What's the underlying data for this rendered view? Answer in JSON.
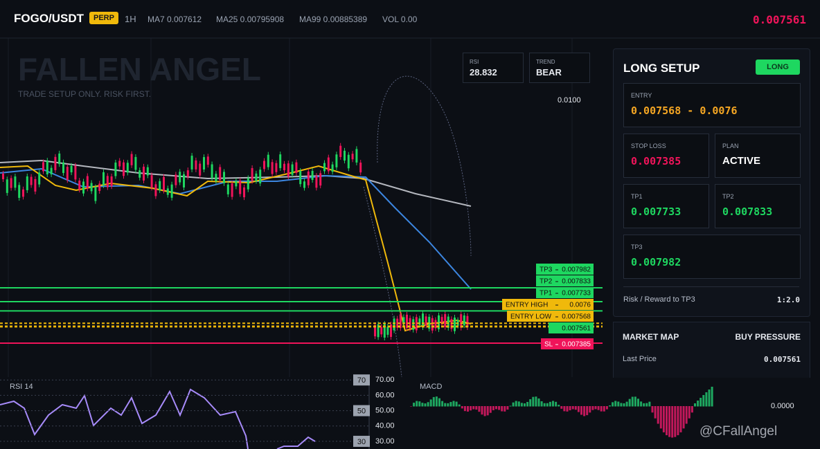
{
  "header": {
    "symbol": "FOGO/USDT",
    "badge": "PERP",
    "interval": "1H",
    "ma7": "MA7 0.007612",
    "ma25": "MA25 0.00795908",
    "ma99": "MA99 0.00885389",
    "vol": "VOL 0.00",
    "price": "0.007561"
  },
  "chart": {
    "watermark": "FALLEN ANGEL",
    "tagline": "TRADE SETUP ONLY. RISK FIRST.",
    "rsi": {
      "label": "RSI",
      "value": "28.832"
    },
    "trend": {
      "label": "TREND",
      "value": "BEAR"
    },
    "price_label": "0.0100",
    "levels": [
      {
        "label": "TP3",
        "value": 0.007982,
        "color": "#1ed760"
      },
      {
        "label": "TP2",
        "value": 0.007833,
        "color": "#1ed760"
      },
      {
        "label": "TP1",
        "value": 0.007733,
        "color": "#1ed760"
      },
      {
        "label": "ENTRY HIGH",
        "value": 0.0076,
        "color": "#f0b90b"
      },
      {
        "label": "ENTRY LOW",
        "value": 0.007568,
        "color": "#f0b90b"
      },
      {
        "label": "SL",
        "value": 0.007385,
        "color": "#f0145a"
      }
    ],
    "last": {
      "value": 0.007561,
      "color": "#1ed760"
    }
  },
  "panel": {
    "title": "LONG SETUP",
    "button": "LONG",
    "entry": {
      "label": "ENTRY",
      "value": "0.007568 - 0.0076"
    },
    "stop": {
      "label": "STOP LOSS",
      "value": "0.007385"
    },
    "plan": {
      "label": "PLAN",
      "value": "ACTIVE"
    },
    "tp1": {
      "label": "TP1",
      "value": "0.007733"
    },
    "tp2": {
      "label": "TP2",
      "value": "0.007833"
    },
    "tp3": {
      "label": "TP3",
      "value": "0.007982"
    },
    "rr": {
      "label": "Risk / Reward to TP3",
      "value": "1:2.0"
    }
  },
  "market": {
    "title": "MARKET MAP",
    "side": "BUY PRESSURE",
    "last_label": "Last Price",
    "last_value": "0.007561"
  },
  "rsi_panel": {
    "title": "RSI 14",
    "ylim": [
      25,
      71
    ],
    "levels": [
      70,
      50,
      30
    ],
    "yticks": [
      {
        "value": 70,
        "label": "70.00"
      },
      {
        "value": 60,
        "label": "60.00"
      },
      {
        "value": 50,
        "label": "50.00"
      },
      {
        "value": 40,
        "label": "40.00"
      },
      {
        "value": 30,
        "label": "30.00"
      }
    ]
  },
  "macd_panel": {
    "title": "MACD",
    "zero": "0.0000"
  },
  "credit": "@CFallAngel"
}
